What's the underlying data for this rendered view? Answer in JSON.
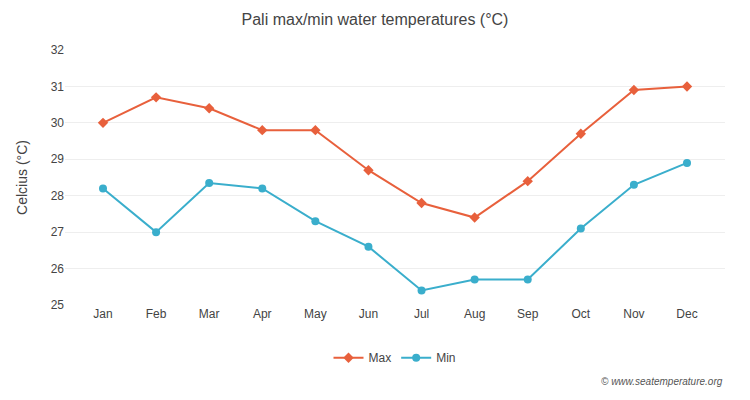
{
  "chart_data": {
    "type": "line",
    "title": "Pali max/min water temperatures (°C)",
    "y_label": "Celcius (°C)",
    "categories": [
      "Jan",
      "Feb",
      "Mar",
      "Apr",
      "May",
      "Jun",
      "Jul",
      "Aug",
      "Sep",
      "Oct",
      "Nov",
      "Dec"
    ],
    "series": [
      {
        "name": "Max",
        "color": "#e8603c",
        "marker": "diamond",
        "values": [
          30.0,
          30.7,
          30.4,
          29.8,
          29.8,
          28.7,
          27.8,
          27.4,
          28.4,
          29.7,
          30.9,
          31.0
        ]
      },
      {
        "name": "Min",
        "color": "#3aaecc",
        "marker": "circle",
        "values": [
          28.2,
          27.0,
          28.35,
          28.2,
          27.3,
          26.6,
          25.4,
          25.7,
          25.7,
          27.1,
          28.3,
          28.9
        ]
      }
    ],
    "ylim": [
      25,
      32
    ],
    "yticks": [
      25,
      26,
      27,
      28,
      29,
      30,
      31,
      32
    ],
    "grid": true,
    "legend": "bottom",
    "annotations": [
      "© www.seatemperature.org"
    ]
  }
}
